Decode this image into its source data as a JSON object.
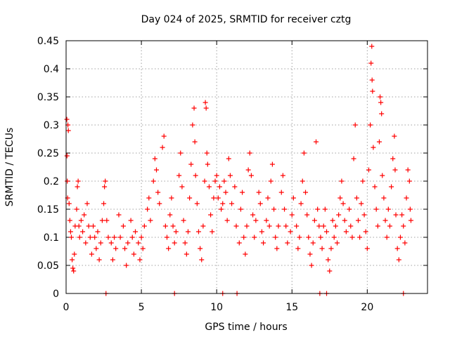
{
  "chart_data": {
    "type": "scatter",
    "title": "Day 024 of 2025, SRMTID for receiver cztg",
    "xlabel": "GPS time / hours",
    "ylabel": "SRMTID / TECUs",
    "xlim": [
      0,
      24
    ],
    "ylim": [
      0,
      0.45
    ],
    "x_ticks": [
      0,
      5,
      10,
      15,
      20
    ],
    "y_ticks": [
      0,
      0.05,
      0.1,
      0.15,
      0.2,
      0.25,
      0.3,
      0.35,
      0.4,
      0.45
    ],
    "x_tick_labels": [
      "0",
      "5",
      "10",
      "15",
      "20"
    ],
    "y_tick_labels": [
      "0",
      "0.05",
      "0.1",
      "0.15",
      "0.2",
      "0.25",
      "0.3",
      "0.35",
      "0.4",
      "0.45"
    ],
    "grid": true,
    "marker": "+",
    "series_color": "#ff0000",
    "series": [
      {
        "name": "SRMTID",
        "points": [
          [
            0.05,
            0.31
          ],
          [
            0.06,
            0.245
          ],
          [
            0.08,
            0.2
          ],
          [
            0.1,
            0.17
          ],
          [
            0.12,
            0.3
          ],
          [
            0.15,
            0.29
          ],
          [
            0.2,
            0.16
          ],
          [
            0.25,
            0.13
          ],
          [
            0.3,
            0.11
          ],
          [
            0.35,
            0.1
          ],
          [
            0.4,
            0.06
          ],
          [
            0.45,
            0.045
          ],
          [
            0.5,
            0.04
          ],
          [
            0.55,
            0.07
          ],
          [
            0.6,
            0.12
          ],
          [
            0.7,
            0.15
          ],
          [
            0.75,
            0.19
          ],
          [
            0.8,
            0.2
          ],
          [
            0.85,
            0.12
          ],
          [
            0.9,
            0.1
          ],
          [
            1.0,
            0.13
          ],
          [
            1.1,
            0.11
          ],
          [
            1.2,
            0.14
          ],
          [
            1.3,
            0.09
          ],
          [
            1.4,
            0.16
          ],
          [
            1.5,
            0.12
          ],
          [
            1.6,
            0.1
          ],
          [
            1.7,
            0.07
          ],
          [
            1.8,
            0.12
          ],
          [
            1.9,
            0.1
          ],
          [
            2.0,
            0.08
          ],
          [
            2.1,
            0.11
          ],
          [
            2.2,
            0.06
          ],
          [
            2.3,
            0.09
          ],
          [
            2.4,
            0.13
          ],
          [
            2.5,
            0.16
          ],
          [
            2.55,
            0.19
          ],
          [
            2.6,
            0.2
          ],
          [
            2.7,
            0.13
          ],
          [
            2.8,
            0.1
          ],
          [
            3.0,
            0.09
          ],
          [
            3.1,
            0.06
          ],
          [
            3.2,
            0.1
          ],
          [
            3.3,
            0.08
          ],
          [
            3.5,
            0.14
          ],
          [
            3.6,
            0.1
          ],
          [
            3.8,
            0.12
          ],
          [
            3.9,
            0.08
          ],
          [
            4.0,
            0.05
          ],
          [
            4.1,
            0.09
          ],
          [
            4.3,
            0.13
          ],
          [
            4.4,
            0.1
          ],
          [
            4.5,
            0.07
          ],
          [
            4.6,
            0.11
          ],
          [
            4.8,
            0.09
          ],
          [
            4.9,
            0.06
          ],
          [
            5.0,
            0.1
          ],
          [
            5.1,
            0.08
          ],
          [
            5.2,
            0.12
          ],
          [
            5.4,
            0.15
          ],
          [
            5.5,
            0.17
          ],
          [
            5.6,
            0.13
          ],
          [
            5.8,
            0.2
          ],
          [
            5.9,
            0.24
          ],
          [
            6.0,
            0.22
          ],
          [
            6.1,
            0.18
          ],
          [
            6.2,
            0.16
          ],
          [
            6.4,
            0.26
          ],
          [
            6.5,
            0.28
          ],
          [
            6.6,
            0.12
          ],
          [
            6.7,
            0.1
          ],
          [
            6.8,
            0.08
          ],
          [
            6.9,
            0.14
          ],
          [
            7.0,
            0.17
          ],
          [
            7.1,
            0.12
          ],
          [
            7.2,
            0.09
          ],
          [
            7.3,
            0.11
          ],
          [
            7.5,
            0.21
          ],
          [
            7.6,
            0.25
          ],
          [
            7.7,
            0.19
          ],
          [
            7.8,
            0.13
          ],
          [
            7.9,
            0.09
          ],
          [
            8.0,
            0.07
          ],
          [
            8.1,
            0.11
          ],
          [
            8.2,
            0.17
          ],
          [
            8.3,
            0.23
          ],
          [
            8.4,
            0.3
          ],
          [
            8.5,
            0.33
          ],
          [
            8.55,
            0.27
          ],
          [
            8.6,
            0.21
          ],
          [
            8.7,
            0.16
          ],
          [
            8.8,
            0.11
          ],
          [
            8.9,
            0.08
          ],
          [
            9.0,
            0.06
          ],
          [
            9.1,
            0.12
          ],
          [
            9.2,
            0.2
          ],
          [
            9.25,
            0.34
          ],
          [
            9.3,
            0.33
          ],
          [
            9.35,
            0.25
          ],
          [
            9.4,
            0.23
          ],
          [
            9.5,
            0.19
          ],
          [
            9.6,
            0.14
          ],
          [
            9.7,
            0.11
          ],
          [
            9.8,
            0.17
          ],
          [
            9.9,
            0.2
          ],
          [
            10.0,
            0.21
          ],
          [
            10.1,
            0.17
          ],
          [
            10.2,
            0.19
          ],
          [
            10.3,
            0.15
          ],
          [
            10.4,
            0.16
          ],
          [
            10.5,
            0.2
          ],
          [
            10.6,
            0.18
          ],
          [
            10.7,
            0.13
          ],
          [
            10.8,
            0.24
          ],
          [
            10.9,
            0.21
          ],
          [
            11.0,
            0.16
          ],
          [
            11.2,
            0.19
          ],
          [
            11.3,
            0.12
          ],
          [
            11.5,
            0.09
          ],
          [
            11.6,
            0.15
          ],
          [
            11.7,
            0.18
          ],
          [
            11.8,
            0.1
          ],
          [
            11.9,
            0.07
          ],
          [
            12.0,
            0.12
          ],
          [
            12.1,
            0.22
          ],
          [
            12.2,
            0.25
          ],
          [
            12.3,
            0.21
          ],
          [
            12.4,
            0.14
          ],
          [
            12.5,
            0.1
          ],
          [
            12.6,
            0.13
          ],
          [
            12.8,
            0.18
          ],
          [
            12.9,
            0.16
          ],
          [
            13.0,
            0.11
          ],
          [
            13.1,
            0.09
          ],
          [
            13.3,
            0.13
          ],
          [
            13.4,
            0.17
          ],
          [
            13.5,
            0.12
          ],
          [
            13.6,
            0.2
          ],
          [
            13.7,
            0.23
          ],
          [
            13.8,
            0.15
          ],
          [
            13.9,
            0.1
          ],
          [
            14.0,
            0.08
          ],
          [
            14.1,
            0.12
          ],
          [
            14.3,
            0.18
          ],
          [
            14.4,
            0.21
          ],
          [
            14.5,
            0.15
          ],
          [
            14.6,
            0.12
          ],
          [
            14.7,
            0.09
          ],
          [
            14.9,
            0.11
          ],
          [
            15.0,
            0.14
          ],
          [
            15.1,
            0.17
          ],
          [
            15.3,
            0.12
          ],
          [
            15.4,
            0.08
          ],
          [
            15.5,
            0.1
          ],
          [
            15.6,
            0.16
          ],
          [
            15.7,
            0.2
          ],
          [
            15.8,
            0.25
          ],
          [
            15.9,
            0.18
          ],
          [
            16.0,
            0.14
          ],
          [
            16.1,
            0.1
          ],
          [
            16.2,
            0.07
          ],
          [
            16.3,
            0.05
          ],
          [
            16.4,
            0.09
          ],
          [
            16.5,
            0.13
          ],
          [
            16.6,
            0.27
          ],
          [
            16.7,
            0.15
          ],
          [
            16.8,
            0.12
          ],
          [
            16.9,
            0.1
          ],
          [
            17.0,
            0.08
          ],
          [
            17.1,
            0.12
          ],
          [
            17.2,
            0.15
          ],
          [
            17.3,
            0.11
          ],
          [
            17.4,
            0.06
          ],
          [
            17.5,
            0.04
          ],
          [
            17.6,
            0.08
          ],
          [
            17.7,
            0.13
          ],
          [
            17.8,
            0.1
          ],
          [
            17.9,
            0.12
          ],
          [
            18.0,
            0.09
          ],
          [
            18.1,
            0.14
          ],
          [
            18.2,
            0.17
          ],
          [
            18.3,
            0.2
          ],
          [
            18.4,
            0.16
          ],
          [
            18.5,
            0.13
          ],
          [
            18.6,
            0.11
          ],
          [
            18.8,
            0.15
          ],
          [
            18.9,
            0.12
          ],
          [
            19.0,
            0.1
          ],
          [
            19.1,
            0.24
          ],
          [
            19.2,
            0.3
          ],
          [
            19.3,
            0.17
          ],
          [
            19.4,
            0.13
          ],
          [
            19.5,
            0.1
          ],
          [
            19.6,
            0.16
          ],
          [
            19.7,
            0.2
          ],
          [
            19.8,
            0.14
          ],
          [
            19.9,
            0.11
          ],
          [
            20.0,
            0.08
          ],
          [
            20.1,
            0.22
          ],
          [
            20.2,
            0.3
          ],
          [
            20.25,
            0.41
          ],
          [
            20.3,
            0.44
          ],
          [
            20.32,
            0.38
          ],
          [
            20.35,
            0.36
          ],
          [
            20.4,
            0.26
          ],
          [
            20.5,
            0.19
          ],
          [
            20.6,
            0.15
          ],
          [
            20.7,
            0.12
          ],
          [
            20.8,
            0.27
          ],
          [
            20.85,
            0.35
          ],
          [
            20.9,
            0.34
          ],
          [
            20.95,
            0.32
          ],
          [
            21.0,
            0.21
          ],
          [
            21.1,
            0.17
          ],
          [
            21.2,
            0.13
          ],
          [
            21.3,
            0.1
          ],
          [
            21.4,
            0.15
          ],
          [
            21.5,
            0.12
          ],
          [
            21.6,
            0.19
          ],
          [
            21.7,
            0.24
          ],
          [
            21.8,
            0.28
          ],
          [
            21.85,
            0.22
          ],
          [
            21.9,
            0.14
          ],
          [
            22.0,
            0.08
          ],
          [
            22.1,
            0.06
          ],
          [
            22.2,
            0.1
          ],
          [
            22.3,
            0.14
          ],
          [
            22.4,
            0.12
          ],
          [
            22.5,
            0.09
          ],
          [
            22.6,
            0.17
          ],
          [
            22.7,
            0.22
          ],
          [
            22.8,
            0.2
          ],
          [
            22.85,
            0.15
          ],
          [
            22.9,
            0.13
          ]
        ]
      }
    ],
    "zero_points": [
      2.65,
      7.2,
      10.4,
      11.35,
      16.85,
      17.3,
      22.4
    ]
  }
}
